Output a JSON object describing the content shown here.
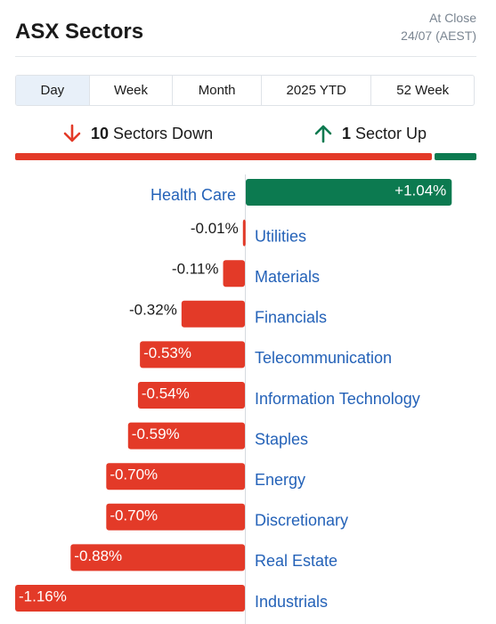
{
  "header": {
    "title": "ASX Sectors",
    "status_line1": "At Close",
    "status_line2": "24/07 (AEST)"
  },
  "tabs": [
    {
      "label": "Day",
      "active": true
    },
    {
      "label": "Week",
      "active": false
    },
    {
      "label": "Month",
      "active": false
    },
    {
      "label": "2025 YTD",
      "active": false
    },
    {
      "label": "52 Week",
      "active": false
    }
  ],
  "summary": {
    "down_count": "10",
    "down_text": "Sectors Down",
    "up_count": "1",
    "up_text": "Sector Up"
  },
  "colors": {
    "down": "#e33a28",
    "up": "#0c7a50",
    "link": "#2462b8",
    "tab_active_bg": "#e8f0f9"
  },
  "chart_data": {
    "type": "bar",
    "orientation": "horizontal",
    "categories": [
      "Health Care",
      "Utilities",
      "Materials",
      "Financials",
      "Telecommunication",
      "Information Technology",
      "Staples",
      "Energy",
      "Discretionary",
      "Real Estate",
      "Industrials"
    ],
    "values": [
      1.04,
      -0.01,
      -0.11,
      -0.32,
      -0.53,
      -0.54,
      -0.59,
      -0.7,
      -0.7,
      -0.88,
      -1.16
    ],
    "labels": [
      "+1.04%",
      "-0.01%",
      "-0.11%",
      "-0.32%",
      "-0.53%",
      "-0.54%",
      "-0.59%",
      "-0.70%",
      "-0.70%",
      "-0.88%",
      "-1.16%"
    ],
    "unit": "%"
  }
}
